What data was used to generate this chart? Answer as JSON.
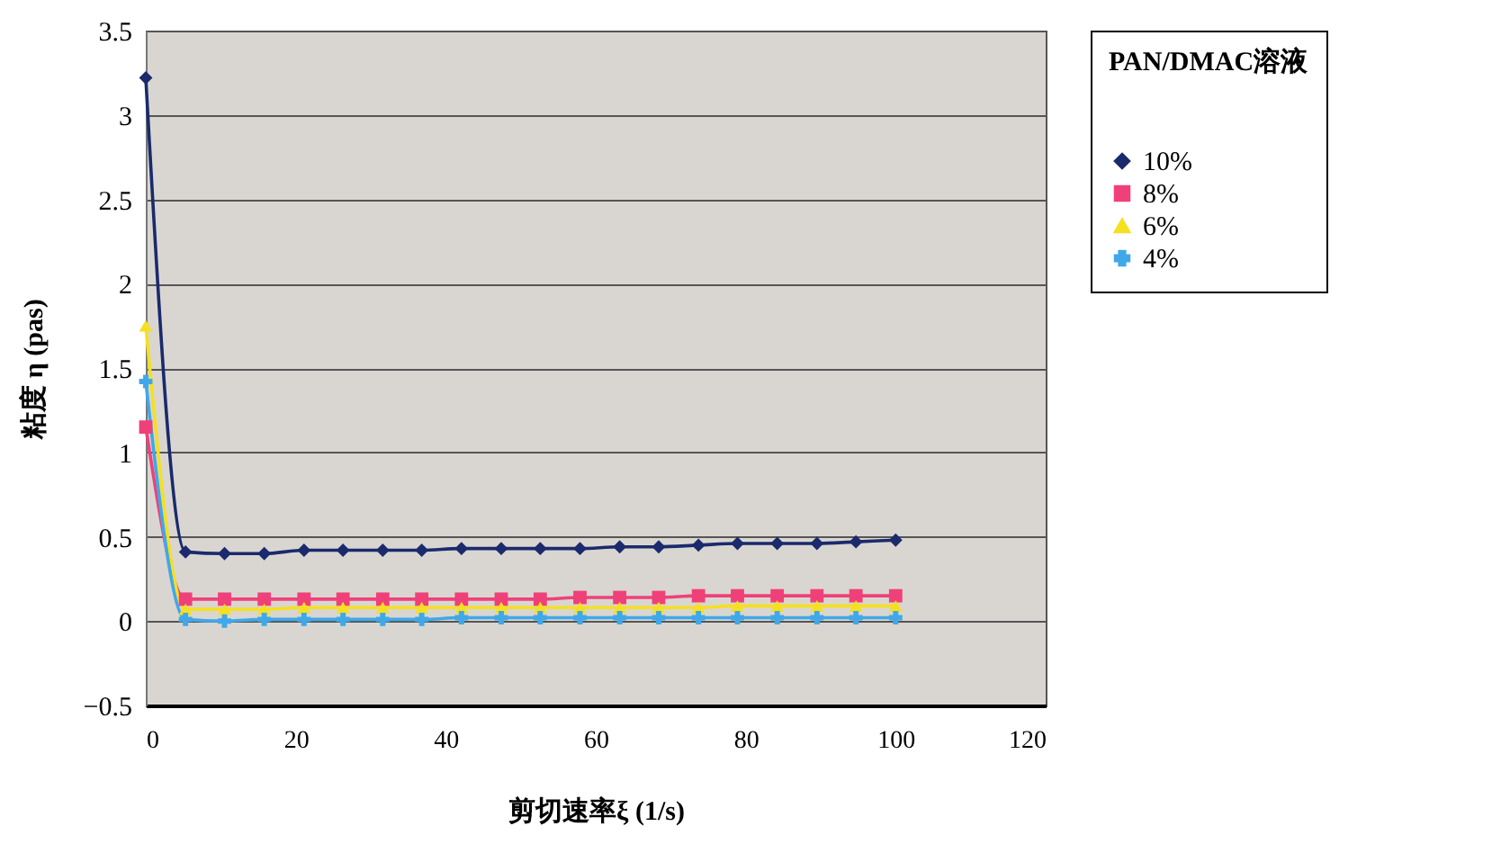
{
  "chart_data": {
    "type": "line",
    "xlabel": "剪切速率ξ (1/s)",
    "ylabel": "粘度 η (pas)",
    "legend_title": "PAN/DMAC溶液",
    "x": [
      0,
      5.3,
      10.5,
      15.8,
      21.1,
      26.3,
      31.6,
      36.8,
      42.1,
      47.4,
      52.6,
      57.9,
      63.2,
      68.4,
      73.7,
      78.9,
      84.2,
      89.5,
      94.7,
      100
    ],
    "series": [
      {
        "name": "10%",
        "color": "#1a2a6c",
        "marker": "diamond",
        "values": [
          3.22,
          0.41,
          0.4,
          0.4,
          0.42,
          0.42,
          0.42,
          0.42,
          0.43,
          0.43,
          0.43,
          0.43,
          0.44,
          0.44,
          0.45,
          0.46,
          0.46,
          0.46,
          0.47,
          0.48
        ]
      },
      {
        "name": "8%",
        "color": "#f0407a",
        "marker": "square",
        "values": [
          1.15,
          0.13,
          0.13,
          0.13,
          0.13,
          0.13,
          0.13,
          0.13,
          0.13,
          0.13,
          0.13,
          0.14,
          0.14,
          0.14,
          0.15,
          0.15,
          0.15,
          0.15,
          0.15,
          0.15
        ]
      },
      {
        "name": "6%",
        "color": "#f5e020",
        "marker": "triangle",
        "values": [
          1.75,
          0.07,
          0.07,
          0.07,
          0.08,
          0.08,
          0.08,
          0.08,
          0.08,
          0.08,
          0.08,
          0.08,
          0.08,
          0.08,
          0.08,
          0.09,
          0.09,
          0.09,
          0.09,
          0.09
        ]
      },
      {
        "name": "4%",
        "color": "#40a8e8",
        "marker": "cross",
        "values": [
          1.42,
          0.01,
          0,
          0.01,
          0.01,
          0.01,
          0.01,
          0.01,
          0.02,
          0.02,
          0.02,
          0.02,
          0.02,
          0.02,
          0.02,
          0.02,
          0.02,
          0.02,
          0.02,
          0.02
        ]
      }
    ],
    "xlim": [
      0,
      120
    ],
    "xticks": [
      0,
      20,
      40,
      60,
      80,
      100,
      120
    ],
    "ylim": [
      -0.5,
      3.5
    ],
    "yticks": [
      -0.5,
      0,
      0.5,
      1,
      1.5,
      2,
      2.5,
      3,
      3.5
    ],
    "grid": "y",
    "legend": "right",
    "line_style": "solid"
  }
}
